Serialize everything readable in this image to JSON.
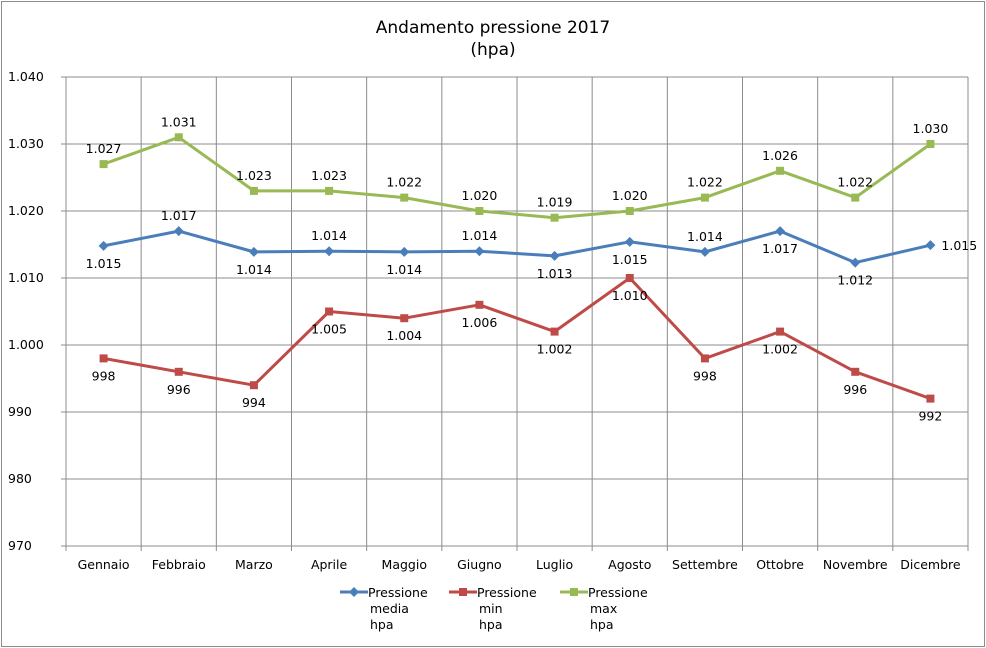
{
  "chart_data": {
    "type": "line",
    "title": "Andamento pressione 2017",
    "subtitle": "(hpa)",
    "categories": [
      "Gennaio",
      "Febbraio",
      "Marzo",
      "Aprile",
      "Maggio",
      "Giugno",
      "Luglio",
      "Agosto",
      "Settembre",
      "Ottobre",
      "Novembre",
      "Dicembre"
    ],
    "ylim": [
      970,
      1040
    ],
    "yticks": [
      970,
      980,
      990,
      1000,
      1010,
      1020,
      1030,
      1040
    ],
    "ytick_labels": [
      "970",
      "980",
      "990",
      "1.000",
      "1.010",
      "1.020",
      "1.030",
      "1.040"
    ],
    "grid": true,
    "legend_position": "bottom",
    "series": [
      {
        "name": "Pressione media hpa",
        "legend_lines": [
          "Pressione",
          "media",
          "hpa"
        ],
        "color": "#4a7ebb",
        "marker": "diamond",
        "values": [
          1014.8,
          1017.0,
          1013.9,
          1014.0,
          1013.9,
          1014.0,
          1013.3,
          1015.4,
          1013.9,
          1017.0,
          1012.3,
          1014.9
        ],
        "labels": [
          "1.015",
          "1.017",
          "1.014",
          "1.014",
          "1.014",
          "1.014",
          "1.013",
          "1.015",
          "1.014",
          "1.017",
          "1.012",
          "1.015"
        ]
      },
      {
        "name": "Pressione min hpa",
        "legend_lines": [
          "Pressione",
          "min",
          "hpa"
        ],
        "color": "#be4b48",
        "marker": "square",
        "values": [
          998,
          996,
          994,
          1005,
          1004,
          1006,
          1002,
          1010,
          998,
          1002,
          996,
          992
        ],
        "labels": [
          "998",
          "996",
          "994",
          "1.005",
          "1.004",
          "1.006",
          "1.002",
          "1.010",
          "998",
          "1.002",
          "996",
          "992"
        ]
      },
      {
        "name": "Pressione max hpa",
        "legend_lines": [
          "Pressione",
          "max",
          "hpa"
        ],
        "color": "#98b954",
        "marker": "square",
        "values": [
          1027,
          1031,
          1023,
          1023,
          1022,
          1020,
          1019,
          1020,
          1022,
          1026,
          1022,
          1030
        ],
        "labels": [
          "1.027",
          "1.031",
          "1.023",
          "1.023",
          "1.022",
          "1.020",
          "1.019",
          "1.020",
          "1.022",
          "1.026",
          "1.022",
          "1.030"
        ]
      }
    ]
  }
}
